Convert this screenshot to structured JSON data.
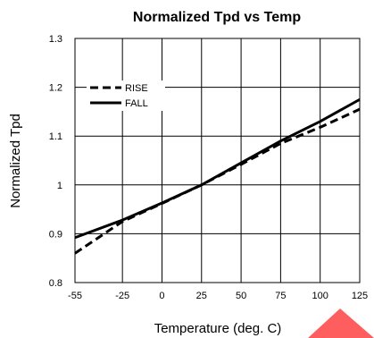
{
  "chart_data": {
    "type": "line",
    "title": "Normalized Tpd vs Temp",
    "xlabel": "Temperature (deg. C)",
    "ylabel": "Normalized Tpd",
    "xlim": [
      -55,
      125
    ],
    "ylim": [
      0.8,
      1.3
    ],
    "x_ticks": [
      "-55",
      "-25",
      "0",
      "25",
      "50",
      "75",
      "100",
      "125"
    ],
    "y_ticks": [
      "0.8",
      "0.9",
      "1",
      "1.1",
      "1.2",
      "1.3"
    ],
    "grid": true,
    "legend_position": "top-left",
    "series": [
      {
        "name": "RISE",
        "style": "dashed",
        "color": "#000000",
        "x": [
          -55,
          -25,
          0,
          25,
          50,
          75,
          100,
          125
        ],
        "y": [
          0.86,
          0.925,
          0.962,
          1.0,
          1.042,
          1.085,
          1.118,
          1.155
        ]
      },
      {
        "name": "FALL",
        "style": "solid",
        "color": "#000000",
        "x": [
          -55,
          -25,
          0,
          25,
          50,
          75,
          100,
          125
        ],
        "y": [
          0.892,
          0.928,
          0.963,
          1.0,
          1.045,
          1.09,
          1.13,
          1.175
        ]
      }
    ]
  }
}
